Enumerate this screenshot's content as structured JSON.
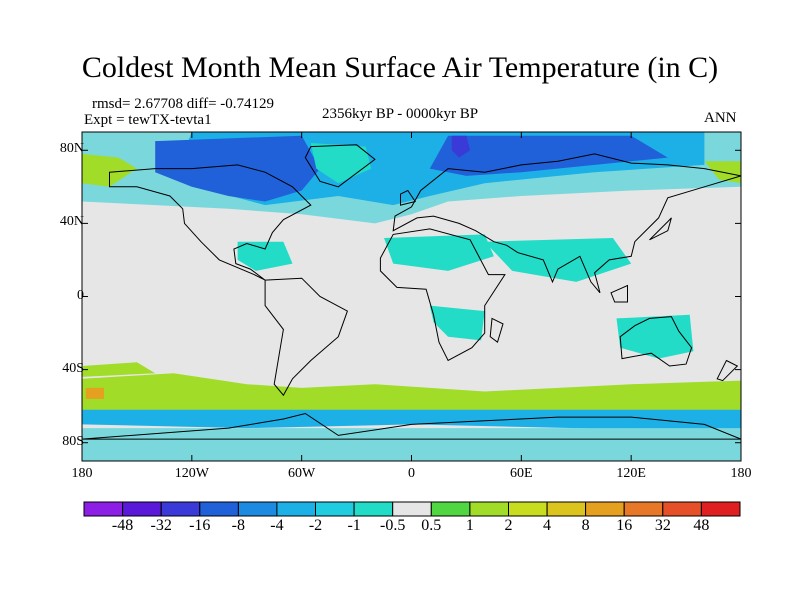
{
  "title": "Coldest Month Mean Surface Air Temperature (in C)",
  "stats": {
    "rmsd_line": "rmsd= 2.67708 diff= -0.74129",
    "expt_line": "Expt = tewTX-tevta1",
    "period": "2356kyr BP - 0000kyr BP",
    "season": "ANN"
  },
  "axes": {
    "lat_labels": [
      "80N",
      "40N",
      "0",
      "40S",
      "80S"
    ],
    "lat_values": [
      80,
      40,
      0,
      -40,
      -80
    ],
    "lon_labels": [
      "180",
      "120W",
      "60W",
      "0",
      "60E",
      "120E",
      "180"
    ],
    "lon_values": [
      -180,
      -120,
      -60,
      0,
      60,
      120,
      180
    ],
    "lat_range": [
      -90,
      90
    ],
    "lon_range": [
      -180,
      180
    ]
  },
  "colorbar": {
    "labels": [
      "-48",
      "-32",
      "-16",
      "-8",
      "-4",
      "-2",
      "-1",
      "-0.5",
      "0.5",
      "1",
      "2",
      "4",
      "8",
      "16",
      "32",
      "48"
    ],
    "colors": [
      "#8c1ee6",
      "#5a18d8",
      "#3a3ad8",
      "#2060d8",
      "#1c8ae0",
      "#1cb0e6",
      "#20cce0",
      "#22dcc8",
      "#e6e6e6",
      "#50d640",
      "#a0dc28",
      "#c8dc20",
      "#dcc41e",
      "#e6a020",
      "#e67828",
      "#e65028",
      "#e02020"
    ]
  },
  "map_colors": {
    "background": "#e6e6e6",
    "land_outline": "#000000",
    "pale_teal": "#7ad8dc",
    "teal": "#22dcc8",
    "cyan": "#1cb0e6",
    "blue": "#2060d8",
    "deep_blue": "#3a3ad8",
    "yellow_green": "#a0dc28",
    "orange": "#e6a020"
  }
}
